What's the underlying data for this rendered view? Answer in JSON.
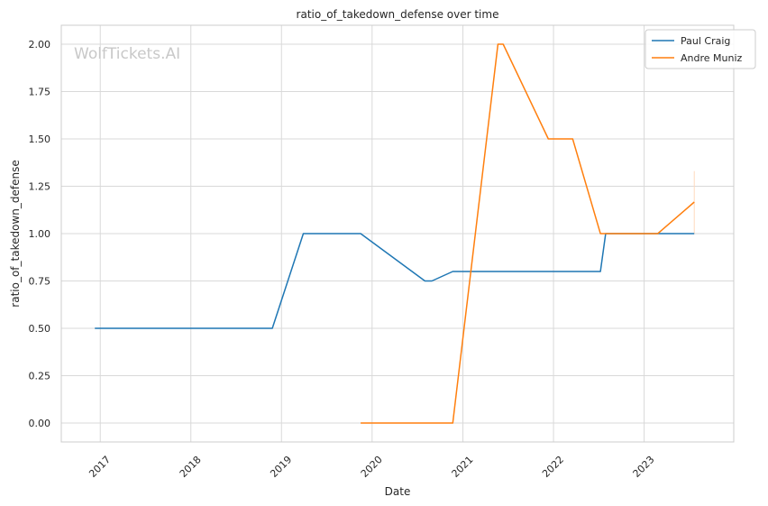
{
  "chart_data": {
    "type": "line",
    "title": "ratio_of_takedown_defense over time",
    "xlabel": "Date",
    "ylabel": "ratio_of_takedown_defense",
    "watermark": "WolfTickets.AI",
    "x_ticks": [
      "2017",
      "2018",
      "2019",
      "2020",
      "2021",
      "2022",
      "2023"
    ],
    "y_ticks": [
      "0.00",
      "0.25",
      "0.50",
      "0.75",
      "1.00",
      "1.25",
      "1.50",
      "1.75",
      "2.00"
    ],
    "xlim": [
      "2016-07-28",
      "2023-12-28"
    ],
    "ylim": [
      -0.1,
      2.1
    ],
    "grid": true,
    "legend_position": "top-right",
    "series": [
      {
        "name": "Paul Craig",
        "color": "#1f77b4",
        "points": [
          {
            "x": "2016-12-10",
            "y": 0.5
          },
          {
            "x": "2018-11-25",
            "y": 0.5
          },
          {
            "x": "2019-03-30",
            "y": 1.0
          },
          {
            "x": "2019-11-16",
            "y": 1.0
          },
          {
            "x": "2020-08-01",
            "y": 0.75
          },
          {
            "x": "2020-08-29",
            "y": 0.75
          },
          {
            "x": "2020-11-21",
            "y": 0.8
          },
          {
            "x": "2022-07-09",
            "y": 0.8
          },
          {
            "x": "2022-07-30",
            "y": 1.0
          },
          {
            "x": "2023-07-22",
            "y": 1.0
          }
        ]
      },
      {
        "name": "Andre Muniz",
        "color": "#ff7f0e",
        "points": [
          {
            "x": "2019-11-16",
            "y": 0.0
          },
          {
            "x": "2020-11-21",
            "y": 0.0
          },
          {
            "x": "2021-05-22",
            "y": 2.0
          },
          {
            "x": "2021-06-12",
            "y": 2.0
          },
          {
            "x": "2021-12-11",
            "y": 1.5
          },
          {
            "x": "2022-03-19",
            "y": 1.5
          },
          {
            "x": "2022-07-09",
            "y": 1.0
          },
          {
            "x": "2023-02-25",
            "y": 1.0
          },
          {
            "x": "2023-07-22",
            "y": 1.1667
          }
        ]
      }
    ]
  }
}
